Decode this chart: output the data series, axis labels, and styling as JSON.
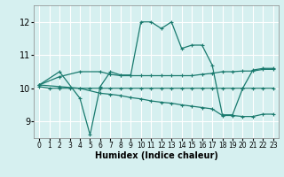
{
  "xlabel": "Humidex (Indice chaleur)",
  "bg_color": "#d6f0f0",
  "grid_color": "#ffffff",
  "line_color": "#1a7a6e",
  "xlim": [
    -0.5,
    23.5
  ],
  "ylim": [
    8.5,
    12.5
  ],
  "xticks": [
    0,
    1,
    2,
    3,
    4,
    5,
    6,
    7,
    8,
    9,
    10,
    11,
    12,
    13,
    14,
    15,
    16,
    17,
    18,
    19,
    20,
    21,
    22,
    23
  ],
  "yticks": [
    9,
    10,
    11,
    12
  ],
  "series": [
    {
      "x": [
        0,
        1,
        2,
        3,
        4,
        5,
        6,
        7,
        8,
        9,
        10,
        11,
        12,
        13,
        14,
        15,
        16,
        17,
        18,
        19,
        20,
        21,
        22,
        23
      ],
      "y": [
        10.05,
        10.0,
        10.0,
        10.0,
        10.0,
        10.0,
        10.0,
        10.0,
        10.0,
        10.0,
        10.0,
        10.0,
        10.0,
        10.0,
        10.0,
        10.0,
        10.0,
        10.0,
        10.0,
        10.0,
        10.0,
        10.0,
        10.0,
        10.0
      ]
    },
    {
      "x": [
        0,
        2,
        4,
        6,
        7,
        8,
        9,
        10,
        11,
        12,
        13,
        14,
        15,
        16,
        17,
        18,
        19,
        20,
        21,
        22,
        23
      ],
      "y": [
        10.1,
        10.35,
        10.5,
        10.5,
        10.42,
        10.38,
        10.38,
        10.38,
        10.38,
        10.38,
        10.38,
        10.38,
        10.38,
        10.42,
        10.45,
        10.5,
        10.5,
        10.52,
        10.52,
        10.57,
        10.57
      ]
    },
    {
      "x": [
        0,
        2,
        4,
        5,
        6,
        7,
        8,
        9,
        10,
        11,
        12,
        13,
        14,
        15,
        16,
        17,
        18,
        19,
        20,
        21,
        22,
        23
      ],
      "y": [
        10.1,
        10.5,
        9.7,
        8.6,
        10.05,
        10.5,
        10.4,
        10.4,
        12.0,
        12.0,
        11.8,
        12.0,
        11.2,
        11.3,
        11.3,
        10.7,
        9.2,
        9.2,
        10.0,
        10.55,
        10.6,
        10.6
      ]
    },
    {
      "x": [
        0,
        2,
        4,
        6,
        7,
        8,
        9,
        10,
        11,
        12,
        13,
        14,
        15,
        16,
        17,
        18,
        19,
        20,
        21,
        22,
        23
      ],
      "y": [
        10.1,
        10.05,
        10.0,
        9.85,
        9.82,
        9.78,
        9.72,
        9.68,
        9.62,
        9.58,
        9.55,
        9.5,
        9.46,
        9.42,
        9.38,
        9.18,
        9.18,
        9.15,
        9.15,
        9.22,
        9.22
      ]
    }
  ]
}
